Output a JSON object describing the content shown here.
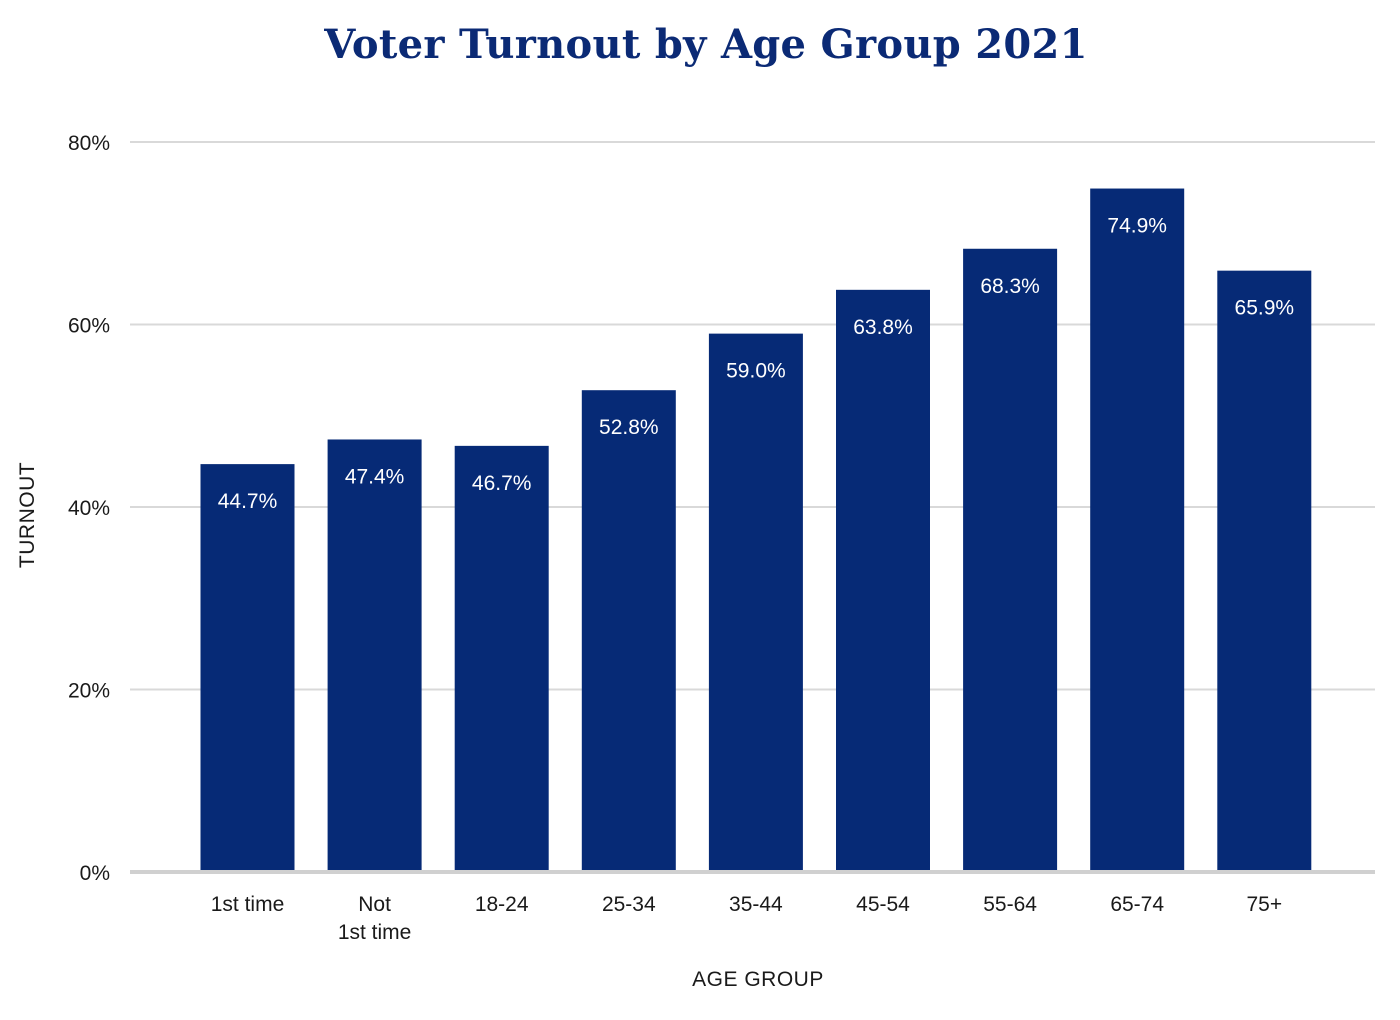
{
  "colors": {
    "bar": "#062a76",
    "gridline": "#d9d9d9",
    "baseline": "#d0d0d0",
    "title": "#0b2a75",
    "label": "#ffffff",
    "text": "#1a1a1a"
  },
  "chart_data": {
    "type": "bar",
    "title": "Voter Turnout by Age Group 2021",
    "xlabel": "AGE GROUP",
    "ylabel": "TURNOUT",
    "categories": [
      [
        "1st time"
      ],
      [
        "Not",
        "1st time"
      ],
      [
        "18-24"
      ],
      [
        "25-34"
      ],
      [
        "35-44"
      ],
      [
        "45-54"
      ],
      [
        "55-64"
      ],
      [
        "65-74"
      ],
      [
        "75+"
      ]
    ],
    "values": [
      44.7,
      47.4,
      46.7,
      52.8,
      59.0,
      63.8,
      68.3,
      74.9,
      65.9
    ],
    "data_labels": [
      "44.7%",
      "47.4%",
      "46.7%",
      "52.8%",
      "59.0%",
      "63.8%",
      "68.3%",
      "74.9%",
      "65.9%"
    ],
    "ylim": [
      0,
      80
    ],
    "yticks": [
      0,
      20,
      40,
      60,
      80
    ],
    "ytick_labels": [
      "0%",
      "20%",
      "40%",
      "60%",
      "80%"
    ],
    "grid": true,
    "legend": "none"
  }
}
